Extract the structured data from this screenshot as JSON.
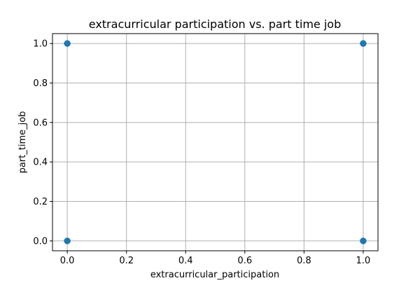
{
  "chart_data": {
    "type": "scatter",
    "title": "extracurricular participation vs. part time job",
    "xlabel": "extracurricular_participation",
    "ylabel": "part_time_job",
    "xlim": [
      -0.05,
      1.05
    ],
    "ylim": [
      -0.05,
      1.05
    ],
    "xticks": [
      "0.0",
      "0.2",
      "0.4",
      "0.6",
      "0.8",
      "1.0"
    ],
    "yticks": [
      "0.0",
      "0.2",
      "0.4",
      "0.6",
      "0.8",
      "1.0"
    ],
    "grid": true,
    "points": [
      {
        "x": 0,
        "y": 1
      },
      {
        "x": 0,
        "y": 0
      },
      {
        "x": 1,
        "y": 1
      },
      {
        "x": 1,
        "y": 0
      }
    ],
    "colors": {
      "marker": "#1f77b4",
      "grid": "#b0b0b0",
      "axis": "#000000"
    }
  }
}
